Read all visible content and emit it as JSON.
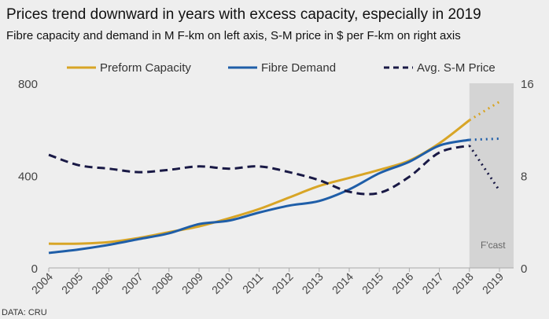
{
  "title": "Prices trend downward in years with excess capacity, especially in 2019",
  "subtitle": "Fibre capacity and demand in M F-km on left axis, S-M price in $ per F-km on right axis",
  "source": "DATA: CRU",
  "chart_data": {
    "type": "line",
    "x": [
      "2004",
      "2005",
      "2006",
      "2007",
      "2008",
      "2009",
      "2010",
      "2011",
      "2012",
      "2013",
      "2014",
      "2015",
      "2016",
      "2017",
      "2018",
      "2019"
    ],
    "forecast_label": "F'cast",
    "forecast_years": [
      "2019"
    ],
    "left_axis": {
      "ylim": [
        0,
        800
      ],
      "ticks": [
        "0",
        "400",
        "800"
      ]
    },
    "right_axis": {
      "ylim": [
        0,
        16
      ],
      "ticks": [
        "0",
        "8",
        "16"
      ]
    },
    "legend_placement": "top",
    "grid": false,
    "series": [
      {
        "name": "Preform Capacity",
        "axis": "left",
        "color": "#d8a526",
        "style": "solid",
        "values": [
          105,
          105,
          112,
          130,
          155,
          180,
          215,
          255,
          305,
          355,
          390,
          425,
          465,
          540,
          640,
          720
        ]
      },
      {
        "name": "Fibre Demand",
        "axis": "left",
        "color": "#1f5ea8",
        "style": "solid",
        "values": [
          65,
          80,
          100,
          125,
          150,
          190,
          205,
          240,
          270,
          290,
          340,
          410,
          460,
          530,
          555,
          560
        ]
      },
      {
        "name": "Avg. S-M Price",
        "axis": "right",
        "color": "#191945",
        "style": "dashed",
        "values": [
          9.8,
          8.9,
          8.6,
          8.3,
          8.5,
          8.8,
          8.6,
          8.8,
          8.3,
          7.6,
          6.6,
          6.5,
          7.9,
          10.0,
          10.6,
          6.7
        ]
      }
    ]
  }
}
